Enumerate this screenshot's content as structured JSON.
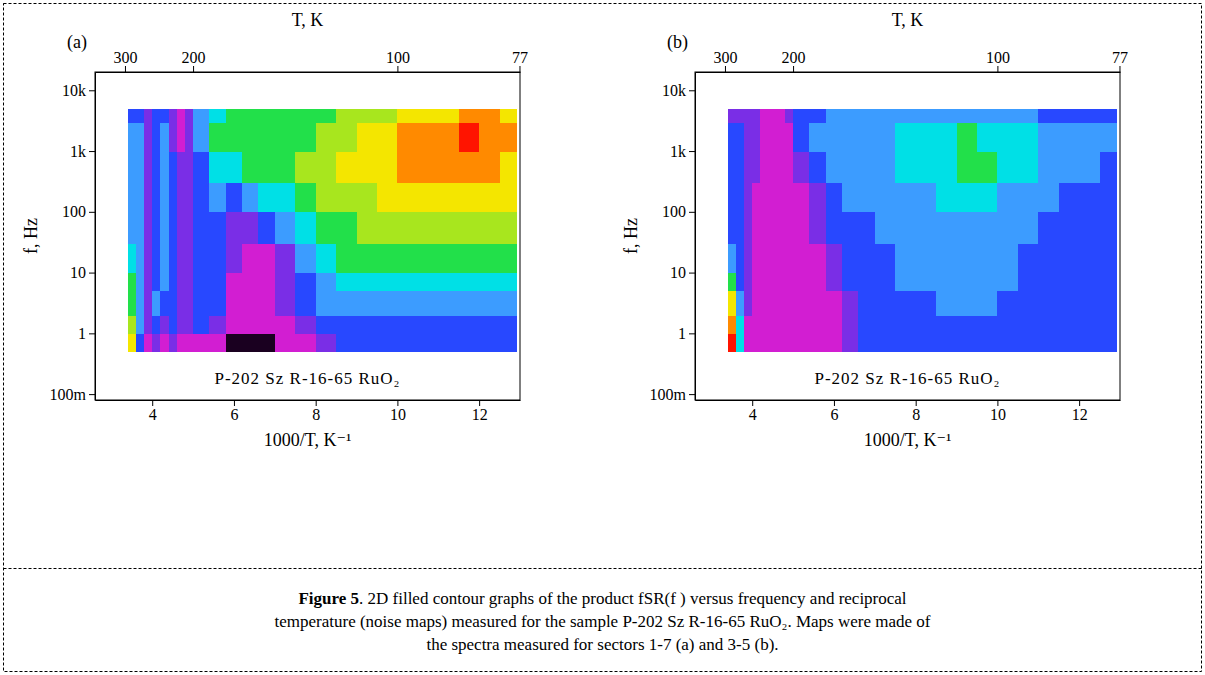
{
  "chart_data": [
    {
      "type": "heatmap",
      "panel_label": "(a)",
      "annotation": "P-202 Sz R-16-65 RuO₂",
      "x_label": "1000/T, K⁻¹",
      "x2_label": "T, K",
      "y_label": "f, Hz",
      "xlim": [
        2.6,
        13
      ],
      "xticks": [
        4,
        6,
        8,
        10,
        12
      ],
      "x2ticks": [
        {
          "value": 3.333,
          "label": "300"
        },
        {
          "value": 5,
          "label": "200"
        },
        {
          "value": 10,
          "label": "100"
        },
        {
          "value": 12.987,
          "label": "77"
        }
      ],
      "ylim": [
        0.08,
        20000
      ],
      "log": "y",
      "yticks": [
        {
          "value": 0.1,
          "label": "100m"
        },
        1,
        10,
        100,
        {
          "value": 1000,
          "label": "1k"
        },
        {
          "value": 10000,
          "label": "10k"
        }
      ],
      "color_range": [
        0,
        10
      ],
      "x_edges": [
        3.4,
        3.6,
        3.8,
        4.0,
        4.2,
        4.4,
        4.6,
        4.8,
        5.0,
        5.4,
        5.8,
        6.2,
        6.6,
        7.0,
        7.5,
        8.0,
        8.5,
        9.0,
        9.5,
        10.0,
        10.5,
        11.0,
        11.5,
        12.0,
        12.5,
        12.9
      ],
      "y_edges": [
        0.5,
        1,
        2,
        5,
        10,
        30,
        100,
        300,
        1000,
        3000,
        5000
      ],
      "cells": [
        [
          8,
          3,
          1,
          2,
          1,
          2,
          1,
          1,
          1,
          1,
          0,
          0,
          0,
          1,
          1,
          2,
          3,
          3,
          3,
          3,
          3,
          3,
          3,
          3,
          3
        ],
        [
          7,
          4,
          2,
          3,
          2,
          3,
          2,
          2,
          3,
          2,
          1,
          1,
          1,
          1,
          2,
          3,
          3,
          3,
          3,
          3,
          3,
          3,
          3,
          3,
          3
        ],
        [
          6,
          4,
          2,
          4,
          3,
          3,
          2,
          2,
          3,
          3,
          1,
          1,
          1,
          2,
          3,
          4,
          4,
          4,
          4,
          4,
          4,
          4,
          4,
          4,
          4
        ],
        [
          6,
          4,
          2,
          3,
          4,
          3,
          2,
          2,
          3,
          3,
          1,
          1,
          1,
          2,
          3,
          4,
          5,
          5,
          5,
          5,
          5,
          5,
          5,
          5,
          5
        ],
        [
          5,
          4,
          2,
          3,
          4,
          3,
          2,
          2,
          3,
          3,
          2,
          1,
          1,
          2,
          4,
          5,
          6,
          6,
          6,
          6,
          6,
          6,
          6,
          6,
          6
        ],
        [
          4,
          4,
          2,
          3,
          4,
          3,
          2,
          2,
          3,
          3,
          2,
          2,
          3,
          4,
          5,
          6,
          6,
          7,
          7,
          7,
          7,
          7,
          7,
          7,
          7
        ],
        [
          4,
          4,
          2,
          3,
          4,
          3,
          2,
          2,
          3,
          4,
          3,
          4,
          5,
          5,
          6,
          7,
          7,
          7,
          8,
          8,
          8,
          8,
          8,
          8,
          8
        ],
        [
          4,
          4,
          2,
          3,
          4,
          3,
          2,
          2,
          3,
          5,
          5,
          6,
          6,
          6,
          7,
          7,
          8,
          8,
          8,
          9,
          9,
          9,
          9,
          9,
          8
        ],
        [
          4,
          4,
          2,
          3,
          4,
          2,
          1,
          2,
          4,
          6,
          6,
          6,
          6,
          6,
          6,
          7,
          7,
          8,
          8,
          9,
          9,
          9,
          10,
          9,
          9
        ],
        [
          3,
          3,
          2,
          3,
          3,
          2,
          1,
          2,
          4,
          5,
          6,
          6,
          6,
          6,
          6,
          6,
          7,
          7,
          7,
          8,
          8,
          8,
          9,
          9,
          8
        ]
      ]
    },
    {
      "type": "heatmap",
      "panel_label": "(b)",
      "annotation": "P-202 Sz R-16-65 RuO₂",
      "x_label": "1000/T, K⁻¹",
      "x2_label": "T, K",
      "y_label": "f, Hz",
      "xlim": [
        2.6,
        13
      ],
      "xticks": [
        4,
        6,
        8,
        10,
        12
      ],
      "x2ticks": [
        {
          "value": 3.333,
          "label": "300"
        },
        {
          "value": 5,
          "label": "200"
        },
        {
          "value": 10,
          "label": "100"
        },
        {
          "value": 12.987,
          "label": "77"
        }
      ],
      "ylim": [
        0.08,
        20000
      ],
      "log": "y",
      "yticks": [
        {
          "value": 0.1,
          "label": "100m"
        },
        1,
        10,
        100,
        {
          "value": 1000,
          "label": "1k"
        },
        {
          "value": 10000,
          "label": "10k"
        }
      ],
      "color_range": [
        0,
        10
      ],
      "x_edges": [
        3.4,
        3.6,
        3.8,
        4.0,
        4.2,
        4.4,
        4.6,
        4.8,
        5.0,
        5.4,
        5.8,
        6.2,
        6.6,
        7.0,
        7.5,
        8.0,
        8.5,
        9.0,
        9.5,
        10.0,
        10.5,
        11.0,
        11.5,
        12.0,
        12.5,
        12.9
      ],
      "y_edges": [
        0.5,
        1,
        2,
        5,
        10,
        30,
        100,
        300,
        1000,
        3000,
        5000
      ],
      "cells": [
        [
          10,
          5,
          1,
          1,
          1,
          1,
          1,
          1,
          1,
          1,
          1,
          2,
          3,
          3,
          3,
          3,
          3,
          3,
          3,
          3,
          3,
          3,
          3,
          3,
          3
        ],
        [
          9,
          5,
          1,
          1,
          1,
          1,
          1,
          1,
          1,
          1,
          1,
          2,
          3,
          3,
          3,
          3,
          3,
          3,
          3,
          3,
          3,
          3,
          3,
          3,
          3
        ],
        [
          8,
          4,
          2,
          1,
          1,
          1,
          1,
          1,
          1,
          1,
          1,
          2,
          3,
          3,
          3,
          3,
          4,
          4,
          4,
          3,
          3,
          3,
          3,
          3,
          3
        ],
        [
          6,
          3,
          2,
          1,
          1,
          1,
          1,
          1,
          1,
          1,
          2,
          3,
          3,
          3,
          4,
          4,
          4,
          4,
          4,
          4,
          3,
          3,
          3,
          3,
          3
        ],
        [
          4,
          3,
          2,
          1,
          1,
          1,
          1,
          1,
          1,
          1,
          2,
          3,
          3,
          3,
          4,
          4,
          4,
          4,
          4,
          4,
          3,
          3,
          3,
          3,
          3
        ],
        [
          3,
          3,
          2,
          1,
          1,
          1,
          1,
          1,
          1,
          2,
          3,
          3,
          3,
          4,
          4,
          4,
          4,
          4,
          4,
          4,
          4,
          3,
          3,
          3,
          3
        ],
        [
          3,
          3,
          2,
          1,
          1,
          1,
          1,
          1,
          1,
          2,
          3,
          4,
          4,
          4,
          4,
          4,
          5,
          5,
          5,
          4,
          4,
          4,
          3,
          3,
          3
        ],
        [
          3,
          3,
          2,
          2,
          1,
          1,
          1,
          1,
          2,
          3,
          4,
          4,
          4,
          4,
          5,
          5,
          5,
          6,
          6,
          5,
          5,
          4,
          4,
          4,
          3
        ],
        [
          3,
          3,
          2,
          2,
          1,
          1,
          1,
          1,
          3,
          4,
          4,
          4,
          4,
          4,
          5,
          5,
          5,
          6,
          5,
          5,
          5,
          4,
          4,
          4,
          4
        ],
        [
          2,
          2,
          2,
          2,
          1,
          1,
          1,
          2,
          3,
          3,
          4,
          4,
          4,
          4,
          4,
          4,
          4,
          4,
          4,
          4,
          4,
          3,
          3,
          3,
          3
        ]
      ]
    }
  ],
  "caption": {
    "label": "Figure 5",
    "lines": [
      ". 2D filled contour graphs of the product fSR(f ) versus frequency and reciprocal",
      "temperature (noise maps) measured for the sample P-202 Sz R-16-65 RuO₂. Maps were made of",
      "the spectra measured for sectors 1-7 (a) and 3-5 (b)."
    ]
  }
}
